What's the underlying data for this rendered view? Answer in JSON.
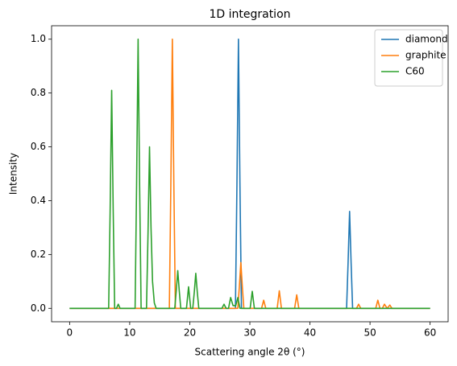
{
  "chart_data": {
    "type": "line",
    "title": "1D integration",
    "x_label": "Scattering angle 2θ (°)",
    "y_label": "Intensity",
    "xlim": [
      -3,
      63
    ],
    "xticks": [
      0,
      10,
      20,
      30,
      40,
      50,
      60
    ],
    "ylim": [
      -0.05,
      1.05
    ],
    "yticks": [
      {
        "value": 0,
        "label": "0.0"
      },
      0.2,
      0.4,
      0.6,
      0.8,
      {
        "value": 1,
        "label": "1.0"
      }
    ],
    "legend": "upper right",
    "series": [
      {
        "name": "diamond",
        "color": "#1f77b4",
        "x": [
          0,
          27.6,
          27.85,
          28.1,
          28.35,
          28.6,
          46.1,
          46.35,
          46.6,
          46.85,
          47.1,
          60
        ],
        "values": [
          0,
          0,
          0.46,
          1.0,
          0.46,
          0,
          0,
          0.17,
          0.36,
          0.17,
          0,
          0
        ]
      },
      {
        "name": "graphite",
        "color": "#ff7f0e",
        "x": [
          0,
          16.6,
          16.85,
          17.1,
          17.35,
          17.6,
          28.0,
          28.25,
          28.5,
          28.75,
          29.0,
          31.95,
          32.3,
          32.65,
          34.55,
          34.9,
          35.25,
          37.45,
          37.8,
          38.15,
          47.75,
          48.1,
          48.45,
          50.95,
          51.3,
          51.65,
          52.05,
          52.4,
          52.85,
          53.3,
          53.65,
          60
        ],
        "values": [
          0,
          0,
          0.46,
          1.0,
          0.46,
          0,
          0,
          0.08,
          0.17,
          0.08,
          0,
          0,
          0.03,
          0,
          0,
          0.065,
          0,
          0,
          0.05,
          0,
          0,
          0.015,
          0,
          0,
          0.03,
          0,
          0,
          0.015,
          0,
          0.012,
          0,
          0
        ]
      },
      {
        "name": "C60",
        "color": "#2ca02c",
        "x": [
          0,
          6.5,
          6.75,
          7.0,
          7.25,
          7.5,
          7.8,
          8.1,
          8.4,
          10.9,
          11.15,
          11.4,
          11.65,
          11.9,
          12.8,
          13.05,
          13.3,
          13.55,
          13.8,
          14.1,
          14.4,
          17.5,
          17.75,
          18.0,
          18.25,
          18.5,
          19.45,
          19.8,
          20.15,
          20.5,
          20.75,
          21.0,
          21.25,
          21.5,
          25.35,
          25.7,
          26.05,
          26.45,
          26.8,
          27.2,
          27.65,
          28.0,
          28.35,
          30.05,
          30.4,
          30.75,
          60
        ],
        "values": [
          0,
          0,
          0.37,
          0.81,
          0.37,
          0,
          0,
          0.015,
          0,
          0,
          0.46,
          1.0,
          0.46,
          0,
          0,
          0.28,
          0.6,
          0.3,
          0.1,
          0.02,
          0,
          0,
          0.065,
          0.14,
          0.065,
          0,
          0,
          0.08,
          0,
          0,
          0.06,
          0.13,
          0.06,
          0,
          0,
          0.015,
          0,
          0,
          0.04,
          0.01,
          0.01,
          0.04,
          0,
          0,
          0.063,
          0,
          0
        ]
      }
    ]
  }
}
